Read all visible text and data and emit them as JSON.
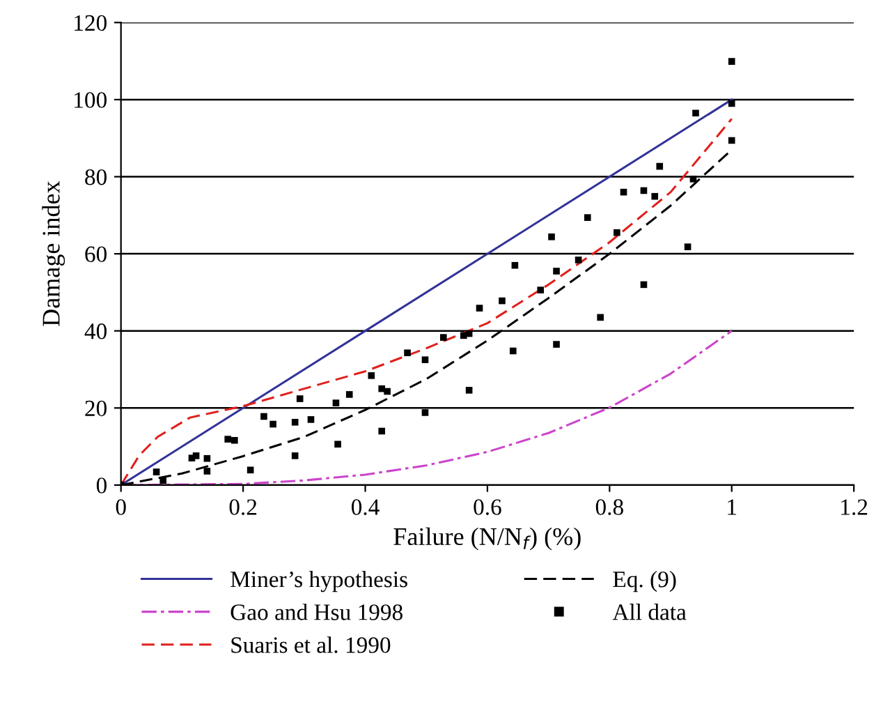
{
  "chart_data": {
    "type": "line",
    "xlabel": "Failure (N/N$_{f}$) (%)",
    "ylabel": "Damage index",
    "xlim": [
      0,
      1.2
    ],
    "xticks": [
      0,
      0.2,
      0.4,
      0.6,
      0.8,
      1,
      1.2
    ],
    "ylim": [
      0,
      120
    ],
    "yticks": [
      0,
      20,
      40,
      60,
      80,
      100,
      120
    ],
    "grid": "y",
    "legend": "bottom",
    "series": [
      {
        "name": "Miner’s hypothesis",
        "color": "#333399",
        "line_style": "solid",
        "x": [
          0,
          1
        ],
        "values": [
          0,
          100
        ]
      },
      {
        "name": "Gao and Hsu 1998",
        "color": "#cc44cc",
        "line_style": "dashdot",
        "x": [
          0,
          0.2,
          0.3,
          0.4,
          0.5,
          0.6,
          0.7,
          0.8,
          0.9,
          1
        ],
        "values": [
          0,
          0.3,
          1.2,
          2.7,
          5.1,
          8.6,
          13.5,
          20.1,
          28.9,
          40
        ]
      },
      {
        "name": "Suaris et al. 1990",
        "color": "#e0201c",
        "line_style": "dashed",
        "x": [
          0,
          0.03,
          0.06,
          0.113,
          0.2,
          0.3,
          0.4,
          0.5,
          0.6,
          0.7,
          0.8,
          0.9,
          1
        ],
        "values": [
          0,
          7.7,
          12.5,
          17.5,
          20.5,
          25,
          29.5,
          35.5,
          42,
          52,
          63,
          76,
          95
        ]
      },
      {
        "name": "Eq. (9)",
        "color": "#000000",
        "line_style": "dashed",
        "x": [
          0,
          0.1,
          0.2,
          0.3,
          0.4,
          0.5,
          0.6,
          0.7,
          0.8,
          0.9,
          1
        ],
        "values": [
          0,
          3,
          7.5,
          12.5,
          19.5,
          27.5,
          37.5,
          48.5,
          60,
          72.5,
          87
        ]
      },
      {
        "name": "All data",
        "type": "scatter",
        "color": "#000000",
        "marker": "square",
        "x": [
          0,
          0.058,
          0.069,
          0.116,
          0.123,
          0.141,
          0.141,
          0.175,
          0.186,
          0.212,
          0.234,
          0.249,
          0.285,
          0.285,
          0.293,
          0.311,
          0.352,
          0.355,
          0.374,
          0.41,
          0.427,
          0.436,
          0.427,
          0.469,
          0.498,
          0.498,
          0.528,
          0.561,
          0.57,
          0.57,
          0.587,
          0.624,
          0.642,
          0.645,
          0.687,
          0.713,
          0.713,
          0.705,
          0.749,
          0.764,
          0.785,
          0.812,
          0.856,
          0.928,
          0.823,
          0.856,
          0.874,
          0.882,
          0.937,
          0.941,
          1,
          1,
          1
        ],
        "values": [
          0,
          3.4,
          1.2,
          7.0,
          7.6,
          6.9,
          3.6,
          11.9,
          11.6,
          3.9,
          17.8,
          15.8,
          16.3,
          7.6,
          22.4,
          17.0,
          21.3,
          10.6,
          23.5,
          28.4,
          25.0,
          24.3,
          14.0,
          34.3,
          32.5,
          18.8,
          38.3,
          38.8,
          39.3,
          24.6,
          45.9,
          47.8,
          34.8,
          57.0,
          50.6,
          55.5,
          36.5,
          64.4,
          58.4,
          69.4,
          43.5,
          65.5,
          52.0,
          61.8,
          76.0,
          76.4,
          74.9,
          82.7,
          79.4,
          96.5,
          109.9,
          99.0,
          89.4
        ]
      }
    ]
  }
}
